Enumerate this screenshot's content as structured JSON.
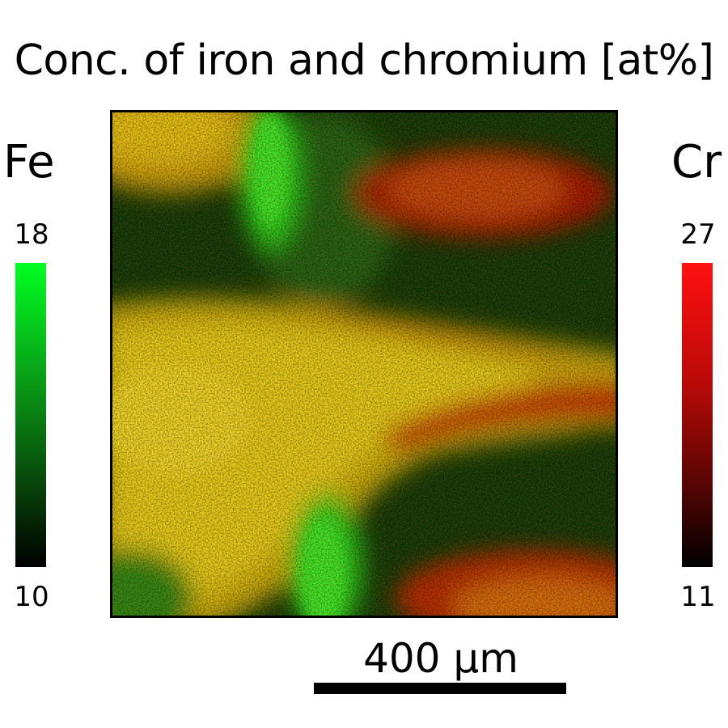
{
  "title": "Conc. of iron and chromium [at%]",
  "fe_colorbar": {
    "label": "Fe",
    "max": "18",
    "min": "10",
    "color": "#00ff22"
  },
  "cr_colorbar": {
    "label": "Cr",
    "max": "27",
    "min": "11",
    "color": "#ff1010"
  },
  "scale_bar": {
    "label": "400 µm"
  }
}
